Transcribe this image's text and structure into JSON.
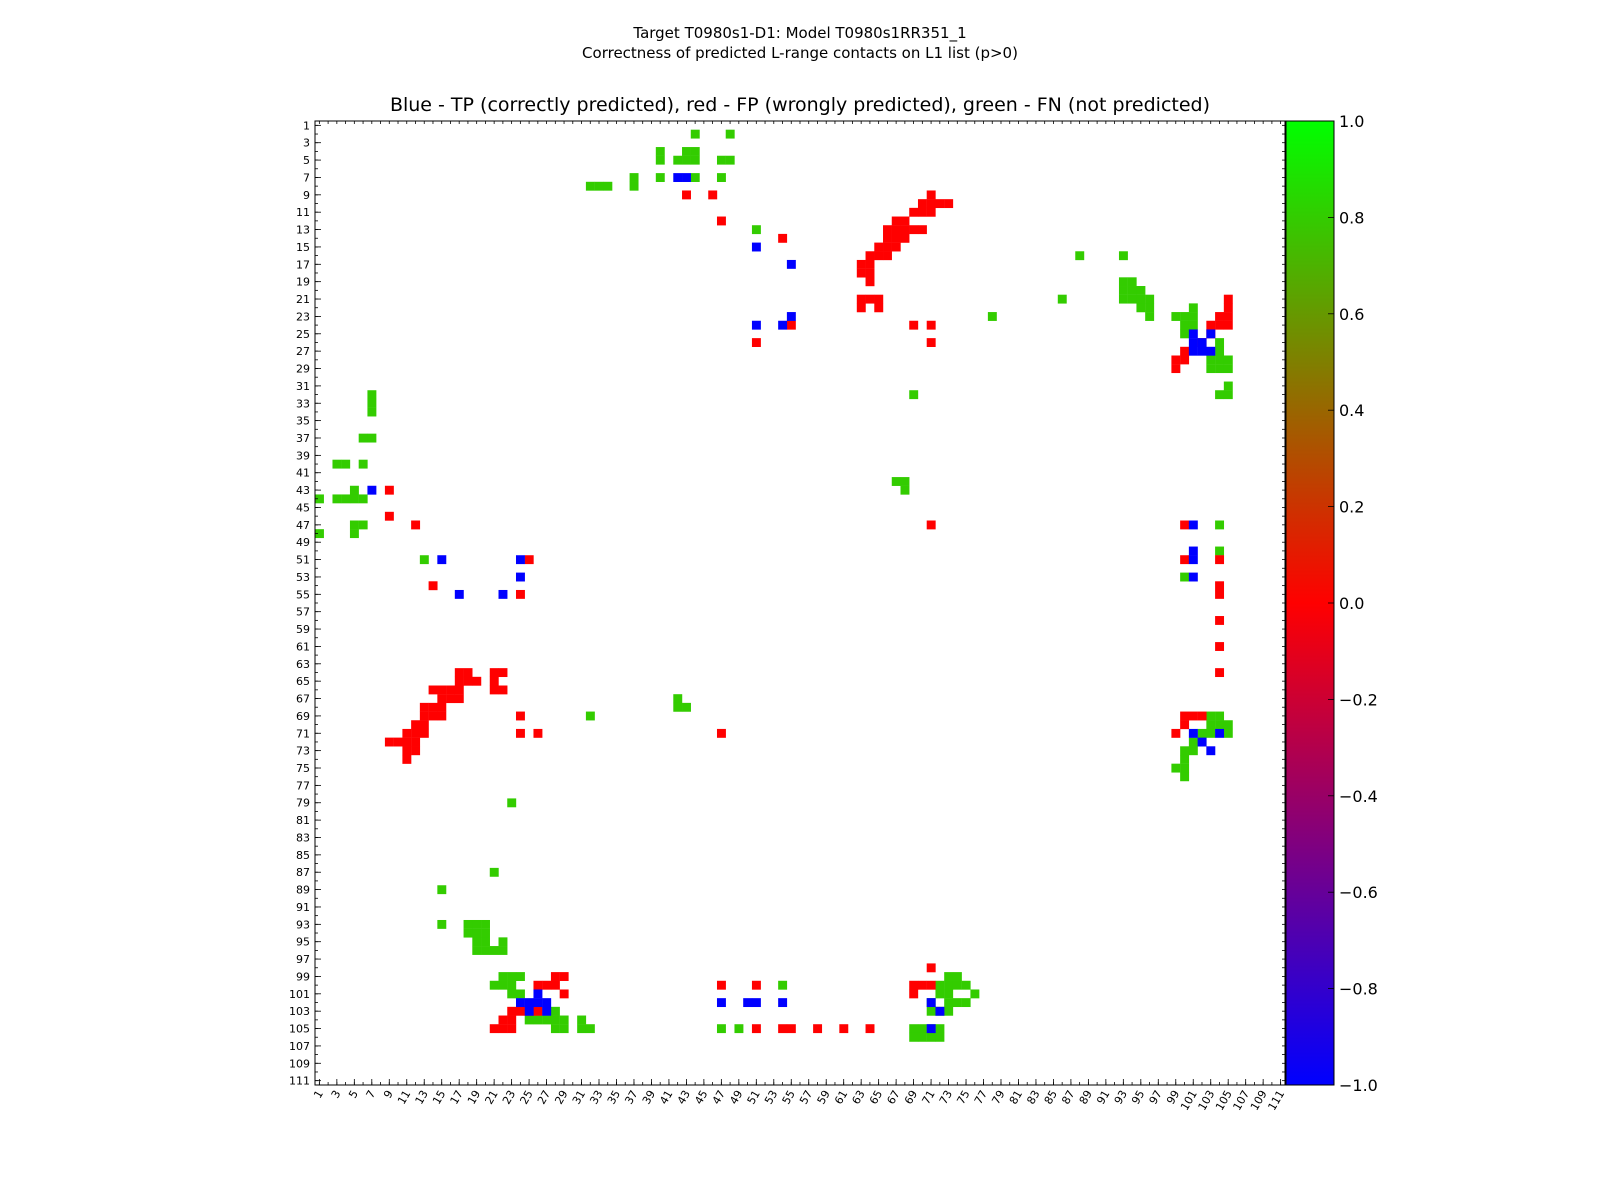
{
  "figure": {
    "title_line1": "Target T0980s1-D1: Model T0980s1RR351_1",
    "title_line2": "Correctness of predicted L-range contacts on L1 list (p>0)",
    "subplot_title": "Blue - TP (correctly predicted), red - FP (wrongly predicted), green - FN (not predicted)"
  },
  "colors": {
    "tp": "#0000ff",
    "fp": "#ff0000",
    "fn": "#33cc00"
  },
  "chart_data": {
    "type": "heatmap",
    "xlim": [
      1,
      111
    ],
    "ylim": [
      1,
      111
    ],
    "x_ticks": [
      1,
      3,
      5,
      7,
      9,
      11,
      13,
      15,
      17,
      19,
      21,
      23,
      25,
      27,
      29,
      31,
      33,
      35,
      37,
      39,
      41,
      43,
      45,
      47,
      49,
      51,
      53,
      55,
      57,
      59,
      61,
      63,
      65,
      67,
      69,
      71,
      73,
      75,
      77,
      79,
      81,
      83,
      85,
      87,
      89,
      91,
      93,
      95,
      97,
      99,
      101,
      103,
      105,
      107,
      109,
      111
    ],
    "y_ticks": [
      1,
      3,
      5,
      7,
      9,
      11,
      13,
      15,
      17,
      19,
      21,
      23,
      25,
      27,
      29,
      31,
      33,
      35,
      37,
      39,
      41,
      43,
      45,
      47,
      49,
      51,
      53,
      55,
      57,
      59,
      61,
      63,
      65,
      67,
      69,
      71,
      73,
      75,
      77,
      79,
      81,
      83,
      85,
      87,
      89,
      91,
      93,
      95,
      97,
      99,
      101,
      103,
      105,
      107,
      109,
      111
    ],
    "colorbar": {
      "min": -1.0,
      "max": 1.0,
      "ticks": [
        "1.0",
        "0.8",
        "0.6",
        "0.4",
        "0.2",
        "0.0",
        "−0.2",
        "−0.4",
        "−0.6",
        "−0.8",
        "−1.0"
      ]
    },
    "cells_tp": [
      [
        43,
        7
      ],
      [
        42,
        7
      ],
      [
        51,
        15
      ],
      [
        55,
        17
      ],
      [
        55,
        23
      ],
      [
        51,
        24
      ],
      [
        54,
        24
      ],
      [
        101,
        25
      ],
      [
        101,
        26
      ],
      [
        101,
        27
      ],
      [
        102,
        26
      ],
      [
        102,
        27
      ],
      [
        103,
        25
      ],
      [
        103,
        27
      ],
      [
        101,
        71
      ],
      [
        102,
        72
      ],
      [
        104,
        71
      ],
      [
        103,
        73
      ],
      [
        101,
        47
      ],
      [
        101,
        50
      ],
      [
        101,
        51
      ],
      [
        101,
        53
      ],
      [
        7,
        43
      ],
      [
        15,
        51
      ],
      [
        24,
        51
      ],
      [
        24,
        53
      ],
      [
        17,
        55
      ],
      [
        22,
        55
      ],
      [
        26,
        101
      ],
      [
        26,
        102
      ],
      [
        25,
        102
      ],
      [
        24,
        102
      ],
      [
        25,
        103
      ],
      [
        27,
        102
      ],
      [
        27,
        103
      ],
      [
        47,
        102
      ],
      [
        50,
        102
      ],
      [
        51,
        102
      ],
      [
        54,
        102
      ],
      [
        71,
        102
      ],
      [
        72,
        103
      ],
      [
        71,
        105
      ]
    ],
    "cells_fp": [
      [
        43,
        9
      ],
      [
        46,
        9
      ],
      [
        47,
        12
      ],
      [
        54,
        14
      ],
      [
        55,
        24
      ],
      [
        69,
        24
      ],
      [
        71,
        24
      ],
      [
        51,
        26
      ],
      [
        71,
        26
      ],
      [
        71,
        9
      ],
      [
        71,
        10
      ],
      [
        70,
        10
      ],
      [
        72,
        10
      ],
      [
        73,
        10
      ],
      [
        71,
        11
      ],
      [
        70,
        11
      ],
      [
        69,
        11
      ],
      [
        68,
        12
      ],
      [
        67,
        12
      ],
      [
        66,
        13
      ],
      [
        67,
        13
      ],
      [
        68,
        13
      ],
      [
        69,
        13
      ],
      [
        70,
        13
      ],
      [
        66,
        14
      ],
      [
        67,
        14
      ],
      [
        68,
        14
      ],
      [
        65,
        15
      ],
      [
        66,
        15
      ],
      [
        67,
        15
      ],
      [
        64,
        16
      ],
      [
        65,
        16
      ],
      [
        66,
        16
      ],
      [
        63,
        17
      ],
      [
        64,
        17
      ],
      [
        63,
        18
      ],
      [
        64,
        18
      ],
      [
        64,
        19
      ],
      [
        63,
        21
      ],
      [
        64,
        21
      ],
      [
        65,
        21
      ],
      [
        63,
        22
      ],
      [
        65,
        22
      ],
      [
        105,
        21
      ],
      [
        105,
        22
      ],
      [
        104,
        23
      ],
      [
        105,
        23
      ],
      [
        103,
        24
      ],
      [
        104,
        24
      ],
      [
        105,
        24
      ],
      [
        103,
        25
      ],
      [
        102,
        26
      ],
      [
        100,
        27
      ],
      [
        99,
        28
      ],
      [
        100,
        28
      ],
      [
        99,
        29
      ],
      [
        9,
        43
      ],
      [
        9,
        46
      ],
      [
        12,
        47
      ],
      [
        71,
        47
      ],
      [
        100,
        47
      ],
      [
        100,
        51
      ],
      [
        104,
        51
      ],
      [
        104,
        54
      ],
      [
        104,
        55
      ],
      [
        104,
        58
      ],
      [
        104,
        61
      ],
      [
        104,
        64
      ],
      [
        100,
        69
      ],
      [
        101,
        69
      ],
      [
        102,
        69
      ],
      [
        100,
        70
      ],
      [
        99,
        71
      ],
      [
        9,
        72
      ],
      [
        10,
        72
      ],
      [
        11,
        72
      ],
      [
        12,
        72
      ],
      [
        11,
        73
      ],
      [
        12,
        73
      ],
      [
        11,
        74
      ],
      [
        12,
        70
      ],
      [
        13,
        70
      ],
      [
        11,
        71
      ],
      [
        12,
        71
      ],
      [
        13,
        71
      ],
      [
        13,
        69
      ],
      [
        14,
        69
      ],
      [
        15,
        69
      ],
      [
        13,
        68
      ],
      [
        14,
        68
      ],
      [
        15,
        68
      ],
      [
        15,
        67
      ],
      [
        16,
        67
      ],
      [
        17,
        67
      ],
      [
        14,
        66
      ],
      [
        15,
        66
      ],
      [
        16,
        66
      ],
      [
        17,
        66
      ],
      [
        17,
        65
      ],
      [
        18,
        65
      ],
      [
        18,
        64
      ],
      [
        17,
        64
      ],
      [
        19,
        65
      ],
      [
        21,
        64
      ],
      [
        21,
        65
      ],
      [
        22,
        64
      ],
      [
        22,
        66
      ],
      [
        21,
        66
      ],
      [
        25,
        51
      ],
      [
        14,
        54
      ],
      [
        24,
        55
      ],
      [
        24,
        69
      ],
      [
        24,
        71
      ],
      [
        26,
        71
      ],
      [
        47,
        71
      ],
      [
        28,
        99
      ],
      [
        29,
        99
      ],
      [
        28,
        100
      ],
      [
        27,
        100
      ],
      [
        26,
        100
      ],
      [
        29,
        101
      ],
      [
        23,
        103
      ],
      [
        24,
        103
      ],
      [
        25,
        103
      ],
      [
        26,
        103
      ],
      [
        22,
        104
      ],
      [
        23,
        104
      ],
      [
        21,
        105
      ],
      [
        22,
        105
      ],
      [
        23,
        105
      ],
      [
        47,
        100
      ],
      [
        51,
        100
      ],
      [
        51,
        105
      ],
      [
        54,
        105
      ],
      [
        55,
        105
      ],
      [
        58,
        105
      ],
      [
        61,
        105
      ],
      [
        64,
        105
      ],
      [
        69,
        100
      ],
      [
        70,
        100
      ],
      [
        71,
        100
      ],
      [
        69,
        101
      ],
      [
        71,
        98
      ]
    ],
    "cells_fn": [
      [
        44,
        2
      ],
      [
        48,
        2
      ],
      [
        40,
        4
      ],
      [
        40,
        5
      ],
      [
        43,
        4
      ],
      [
        44,
        4
      ],
      [
        43,
        5
      ],
      [
        44,
        5
      ],
      [
        42,
        5
      ],
      [
        47,
        5
      ],
      [
        48,
        5
      ],
      [
        37,
        7
      ],
      [
        40,
        7
      ],
      [
        44,
        7
      ],
      [
        47,
        7
      ],
      [
        37,
        8
      ],
      [
        32,
        8
      ],
      [
        33,
        8
      ],
      [
        34,
        8
      ],
      [
        51,
        13
      ],
      [
        88,
        16
      ],
      [
        93,
        16
      ],
      [
        93,
        19
      ],
      [
        94,
        19
      ],
      [
        93,
        20
      ],
      [
        94,
        20
      ],
      [
        95,
        20
      ],
      [
        93,
        21
      ],
      [
        94,
        21
      ],
      [
        95,
        21
      ],
      [
        86,
        21
      ],
      [
        96,
        21
      ],
      [
        96,
        22
      ],
      [
        95,
        22
      ],
      [
        96,
        23
      ],
      [
        78,
        23
      ],
      [
        99,
        23
      ],
      [
        100,
        23
      ],
      [
        101,
        22
      ],
      [
        101,
        23
      ],
      [
        100,
        24
      ],
      [
        101,
        24
      ],
      [
        100,
        25
      ],
      [
        104,
        26
      ],
      [
        104,
        27
      ],
      [
        103,
        28
      ],
      [
        104,
        28
      ],
      [
        105,
        28
      ],
      [
        103,
        29
      ],
      [
        104,
        29
      ],
      [
        105,
        29
      ],
      [
        69,
        32
      ],
      [
        105,
        31
      ],
      [
        104,
        32
      ],
      [
        105,
        32
      ],
      [
        7,
        32
      ],
      [
        7,
        33
      ],
      [
        7,
        34
      ],
      [
        6,
        37
      ],
      [
        7,
        37
      ],
      [
        3,
        40
      ],
      [
        4,
        40
      ],
      [
        6,
        40
      ],
      [
        67,
        42
      ],
      [
        68,
        42
      ],
      [
        68,
        43
      ],
      [
        5,
        43
      ],
      [
        1,
        44
      ],
      [
        3,
        44
      ],
      [
        4,
        44
      ],
      [
        5,
        44
      ],
      [
        6,
        44
      ],
      [
        5,
        47
      ],
      [
        6,
        47
      ],
      [
        1,
        48
      ],
      [
        5,
        48
      ],
      [
        13,
        51
      ],
      [
        104,
        47
      ],
      [
        104,
        50
      ],
      [
        100,
        53
      ],
      [
        42,
        67
      ],
      [
        42,
        68
      ],
      [
        43,
        68
      ],
      [
        32,
        69
      ],
      [
        103,
        69
      ],
      [
        104,
        69
      ],
      [
        103,
        70
      ],
      [
        104,
        70
      ],
      [
        105,
        70
      ],
      [
        102,
        71
      ],
      [
        103,
        71
      ],
      [
        105,
        71
      ],
      [
        101,
        72
      ],
      [
        102,
        72
      ],
      [
        100,
        73
      ],
      [
        101,
        73
      ],
      [
        100,
        74
      ],
      [
        99,
        75
      ],
      [
        100,
        75
      ],
      [
        100,
        76
      ],
      [
        23,
        79
      ],
      [
        21,
        87
      ],
      [
        15,
        89
      ],
      [
        15,
        93
      ],
      [
        18,
        93
      ],
      [
        19,
        93
      ],
      [
        20,
        93
      ],
      [
        18,
        94
      ],
      [
        19,
        94
      ],
      [
        20,
        94
      ],
      [
        19,
        95
      ],
      [
        20,
        95
      ],
      [
        19,
        96
      ],
      [
        20,
        96
      ],
      [
        21,
        96
      ],
      [
        22,
        96
      ],
      [
        22,
        95
      ],
      [
        22,
        99
      ],
      [
        23,
        99
      ],
      [
        24,
        99
      ],
      [
        23,
        100
      ],
      [
        21,
        100
      ],
      [
        22,
        100
      ],
      [
        23,
        101
      ],
      [
        24,
        101
      ],
      [
        28,
        103
      ],
      [
        28,
        104
      ],
      [
        25,
        104
      ],
      [
        26,
        104
      ],
      [
        27,
        104
      ],
      [
        28,
        105
      ],
      [
        29,
        104
      ],
      [
        29,
        105
      ],
      [
        31,
        105
      ],
      [
        32,
        105
      ],
      [
        31,
        104
      ],
      [
        47,
        105
      ],
      [
        49,
        105
      ],
      [
        54,
        100
      ],
      [
        73,
        99
      ],
      [
        74,
        99
      ],
      [
        75,
        100
      ],
      [
        72,
        100
      ],
      [
        73,
        100
      ],
      [
        74,
        100
      ],
      [
        72,
        101
      ],
      [
        73,
        101
      ],
      [
        76,
        101
      ],
      [
        71,
        102
      ],
      [
        73,
        102
      ],
      [
        72,
        103
      ],
      [
        73,
        103
      ],
      [
        71,
        103
      ],
      [
        69,
        105
      ],
      [
        70,
        105
      ],
      [
        71,
        105
      ],
      [
        72,
        105
      ],
      [
        69,
        106
      ],
      [
        70,
        106
      ],
      [
        71,
        106
      ],
      [
        72,
        106
      ],
      [
        74,
        102
      ],
      [
        75,
        102
      ]
    ]
  }
}
